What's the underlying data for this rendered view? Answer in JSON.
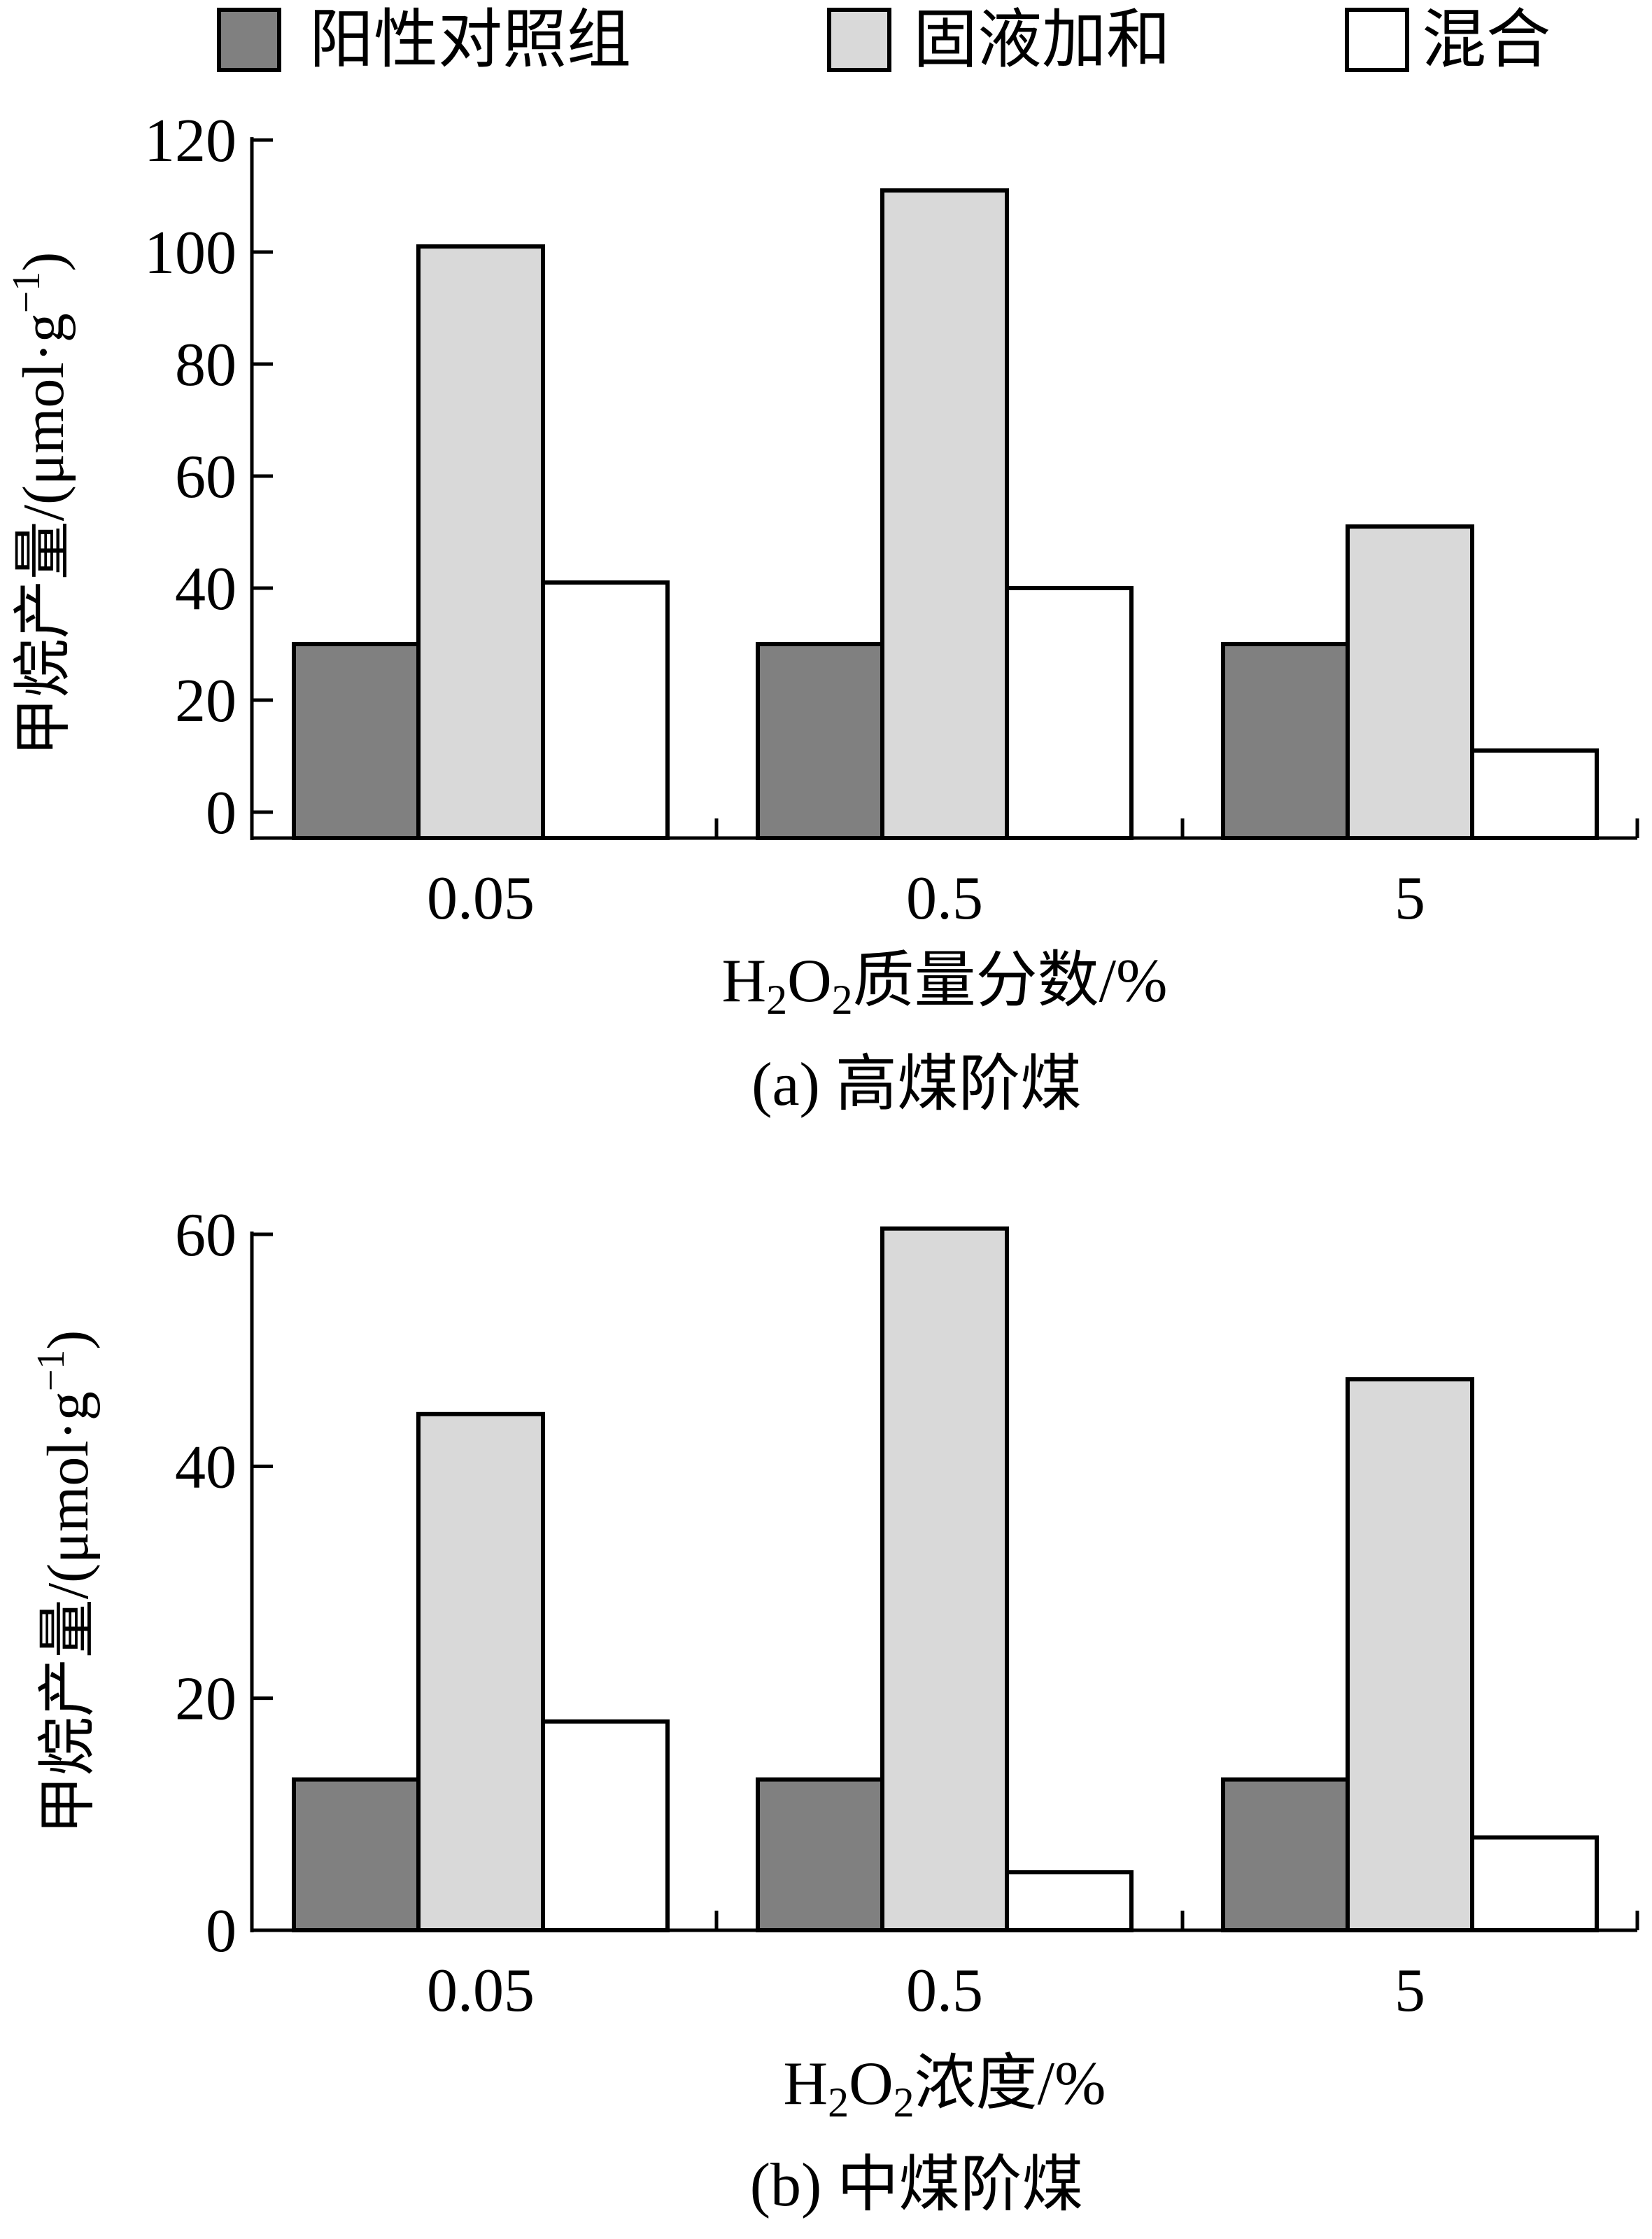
{
  "legend": [
    {
      "name": "阳性对照组",
      "color": "#808080"
    },
    {
      "name": "固液加和",
      "color": "#d9d9d9"
    },
    {
      "name": "混合",
      "color": "#ffffff"
    }
  ],
  "chart_data": [
    {
      "type": "bar",
      "caption": "(a) 高煤阶煤",
      "xlabel_parts": {
        "pre": "H",
        "sub1": "2",
        "mid": "O",
        "sub2": "2",
        "post": "质量分数/%"
      },
      "ylabel_parts": {
        "main": "甲烷产量/(μmol·g",
        "sup": "−1",
        "close": ")"
      },
      "categories": [
        "0.05",
        "0.5",
        "5"
      ],
      "yticks": [
        "0",
        "20",
        "40",
        "60",
        "80",
        "100",
        "120"
      ],
      "ylim": [
        0,
        120
      ],
      "grid": false,
      "legend_position": "top",
      "series": [
        {
          "name": "阳性对照组",
          "values": [
            30,
            30,
            30
          ]
        },
        {
          "name": "固液加和",
          "values": [
            101,
            111,
            51
          ]
        },
        {
          "name": "混合",
          "values": [
            41,
            40,
            11
          ]
        }
      ]
    },
    {
      "type": "bar",
      "caption": "(b) 中煤阶煤",
      "xlabel_parts": {
        "pre": "H",
        "sub1": "2",
        "mid": "O",
        "sub2": "2",
        "post": "浓度/%"
      },
      "ylabel_parts": {
        "main": "甲烷产量/(μmol·g",
        "sup": "−1",
        "close": ")"
      },
      "categories": [
        "0.05",
        "0.5",
        "5"
      ],
      "yticks": [
        "0",
        "20",
        "40",
        "60"
      ],
      "ylim": [
        0,
        60
      ],
      "grid": false,
      "legend_position": "top",
      "series": [
        {
          "name": "阳性对照组",
          "values": [
            13,
            13,
            13
          ]
        },
        {
          "name": "固液加和",
          "values": [
            44.5,
            60.5,
            47.5
          ]
        },
        {
          "name": "混合",
          "values": [
            18,
            5,
            8
          ]
        }
      ]
    }
  ]
}
